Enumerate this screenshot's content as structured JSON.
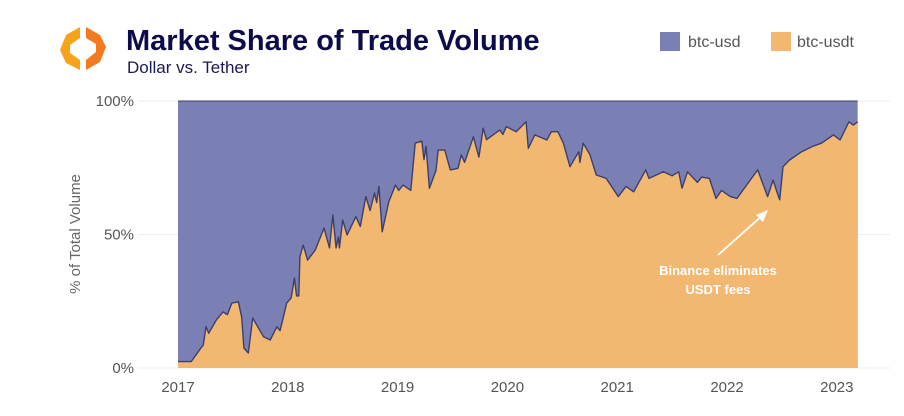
{
  "header": {
    "title": "Market Share of Trade Volume",
    "subtitle": "Dollar vs. Tether",
    "logo": "orange-hexagon-chevrons-logo"
  },
  "colors": {
    "btc_usd": "#7a80b4",
    "btc_usdt": "#f2b872",
    "line": "#3d3f6b",
    "title": "#0c0c4a"
  },
  "chart_data": {
    "type": "area",
    "stacked": true,
    "normalized_percent": true,
    "title": "Market Share of Trade Volume",
    "subtitle": "Dollar vs. Tether",
    "xlabel": "",
    "ylabel": "% of Total Volume",
    "x_ticks": [
      "2017",
      "2018",
      "2019",
      "2020",
      "2021",
      "2022",
      "2023"
    ],
    "y_ticks": [
      "0%",
      "50%",
      "100%"
    ],
    "xlim": [
      2016.8,
      2023.3
    ],
    "ylim": [
      0,
      100
    ],
    "grid": "horizontal",
    "legend": {
      "placement": "top-right",
      "entries": [
        "btc-usd",
        "btc-usdt"
      ]
    },
    "series": [
      {
        "name": "btc-usdt",
        "note_color": "#f2b872",
        "points": [
          [
            2017.0,
            2.4
          ],
          [
            2017.12,
            2.4
          ],
          [
            2017.2,
            7
          ],
          [
            2017.23,
            8.6
          ],
          [
            2017.255,
            15.5
          ],
          [
            2017.28,
            13
          ],
          [
            2017.35,
            18
          ],
          [
            2017.41,
            21
          ],
          [
            2017.45,
            20
          ],
          [
            2017.49,
            24.3
          ],
          [
            2017.55,
            24.8
          ],
          [
            2017.58,
            19
          ],
          [
            2017.6,
            7.5
          ],
          [
            2017.64,
            5.6
          ],
          [
            2017.68,
            18.7
          ],
          [
            2017.78,
            11.7
          ],
          [
            2017.84,
            10.5
          ],
          [
            2017.9,
            15.4
          ],
          [
            2017.93,
            14
          ],
          [
            2017.99,
            24.3
          ],
          [
            2018.03,
            26.2
          ],
          [
            2018.06,
            33.7
          ],
          [
            2018.08,
            27
          ],
          [
            2018.1,
            27
          ],
          [
            2018.11,
            41.7
          ],
          [
            2018.14,
            46
          ],
          [
            2018.18,
            40.4
          ],
          [
            2018.25,
            44.2
          ],
          [
            2018.33,
            52.4
          ],
          [
            2018.38,
            45
          ],
          [
            2018.41,
            57.3
          ],
          [
            2018.44,
            45
          ],
          [
            2018.46,
            49
          ],
          [
            2018.47,
            45
          ],
          [
            2018.5,
            55.4
          ],
          [
            2018.54,
            49.8
          ],
          [
            2018.62,
            56.7
          ],
          [
            2018.66,
            53
          ],
          [
            2018.71,
            64.2
          ],
          [
            2018.75,
            59
          ],
          [
            2018.79,
            65.5
          ],
          [
            2018.81,
            62
          ],
          [
            2018.83,
            68
          ],
          [
            2018.86,
            51
          ],
          [
            2018.92,
            62.3
          ],
          [
            2018.98,
            68.5
          ],
          [
            2019.01,
            66.5
          ],
          [
            2019.05,
            68.5
          ],
          [
            2019.12,
            66.5
          ],
          [
            2019.16,
            84.2
          ],
          [
            2019.22,
            85
          ],
          [
            2019.24,
            78
          ],
          [
            2019.26,
            83
          ],
          [
            2019.29,
            67.3
          ],
          [
            2019.35,
            74
          ],
          [
            2019.37,
            81.6
          ],
          [
            2019.43,
            81.6
          ],
          [
            2019.48,
            74.2
          ],
          [
            2019.55,
            74.8
          ],
          [
            2019.58,
            79.8
          ],
          [
            2019.61,
            77
          ],
          [
            2019.69,
            86.6
          ],
          [
            2019.74,
            79
          ],
          [
            2019.78,
            89.8
          ],
          [
            2019.81,
            85.5
          ],
          [
            2019.93,
            89.1
          ],
          [
            2019.96,
            87.5
          ],
          [
            2019.99,
            90.4
          ],
          [
            2020.08,
            88.5
          ],
          [
            2020.17,
            92.2
          ],
          [
            2020.19,
            82.3
          ],
          [
            2020.25,
            87.3
          ],
          [
            2020.36,
            85.4
          ],
          [
            2020.4,
            88.5
          ],
          [
            2020.46,
            88.5
          ],
          [
            2020.51,
            84.2
          ],
          [
            2020.57,
            75.4
          ],
          [
            2020.65,
            81
          ],
          [
            2020.66,
            77
          ],
          [
            2020.69,
            84.2
          ],
          [
            2020.75,
            80
          ],
          [
            2020.81,
            72.3
          ],
          [
            2020.9,
            71
          ],
          [
            2021.01,
            64.2
          ],
          [
            2021.08,
            68
          ],
          [
            2021.15,
            66
          ],
          [
            2021.26,
            74.2
          ],
          [
            2021.29,
            71
          ],
          [
            2021.42,
            73.5
          ],
          [
            2021.5,
            72
          ],
          [
            2021.56,
            73.5
          ],
          [
            2021.59,
            67.3
          ],
          [
            2021.64,
            73.5
          ],
          [
            2021.73,
            69.5
          ],
          [
            2021.77,
            71.5
          ],
          [
            2021.84,
            71
          ],
          [
            2021.9,
            63.5
          ],
          [
            2021.95,
            66.5
          ],
          [
            2022.03,
            64.2
          ],
          [
            2022.09,
            63.5
          ],
          [
            2022.28,
            74.2
          ],
          [
            2022.37,
            64.2
          ],
          [
            2022.42,
            70.4
          ],
          [
            2022.45,
            66.5
          ],
          [
            2022.48,
            63
          ],
          [
            2022.51,
            75.4
          ],
          [
            2022.57,
            77.9
          ],
          [
            2022.68,
            81
          ],
          [
            2022.78,
            83
          ],
          [
            2022.86,
            84.2
          ],
          [
            2022.97,
            87.3
          ],
          [
            2023.03,
            85.4
          ],
          [
            2023.11,
            92.2
          ],
          [
            2023.15,
            91
          ],
          [
            2023.19,
            92.2
          ]
        ]
      },
      {
        "name": "btc-usd",
        "note": "remainder to 100%",
        "note_color": "#7a80b4"
      }
    ],
    "annotations": [
      {
        "text_line1": "Binance eliminates",
        "text_line2": "USDT fees",
        "points_to": [
          2022.45,
          63
        ]
      }
    ]
  }
}
